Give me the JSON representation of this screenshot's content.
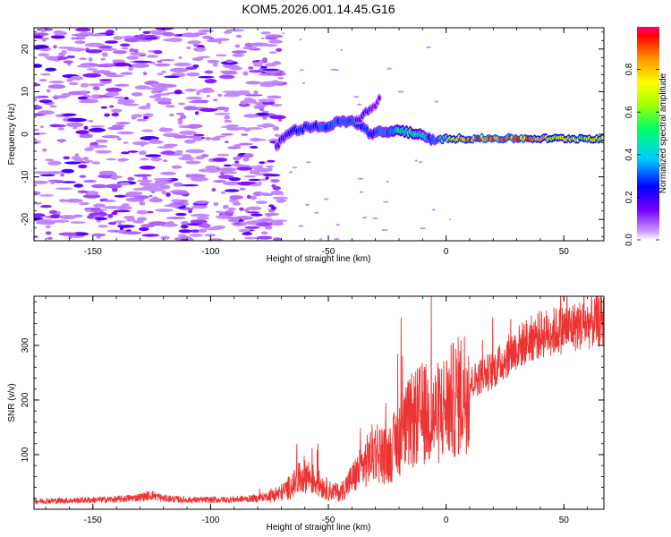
{
  "figure_title": "KOM5.2026.001.14.45.G16",
  "chart_data": [
    {
      "type": "heatmap",
      "title": "",
      "xlabel": "Height of straight line (km)",
      "ylabel": "Frequency (Hz)",
      "xlim": [
        -175,
        67
      ],
      "ylim": [
        -25,
        25
      ],
      "xticks": [
        -150,
        -100,
        -50,
        0,
        50
      ],
      "xtick_labels": [
        "-150",
        "-100",
        "-50",
        "0",
        "50"
      ],
      "yticks": [
        -20,
        -10,
        0,
        10,
        20
      ],
      "ytick_labels": [
        "-20",
        "-10",
        "0",
        "10",
        "20"
      ],
      "colorbar": {
        "label": "Normalized spectral amplitude",
        "range": [
          0,
          1
        ],
        "ticks": [
          0,
          0.2,
          0.4,
          0.6,
          0.8
        ],
        "tick_labels": [
          "0.0",
          "0.2",
          "0.4",
          "0.6",
          "0.8"
        ]
      },
      "ridge": {
        "x": [
          -72,
          -68,
          -64,
          -60,
          -56,
          -52,
          -48,
          -44,
          -40,
          -36,
          -32,
          -28,
          -24,
          -20,
          -16,
          -12,
          -8,
          -4,
          0,
          5,
          10,
          20,
          30,
          40,
          50,
          60,
          67
        ],
        "freq": [
          -3,
          0,
          1,
          1.5,
          2,
          1.5,
          2.5,
          3,
          3,
          2,
          0,
          0.5,
          0.5,
          1,
          0.5,
          0,
          -1,
          -1.5,
          -1,
          -1,
          -1,
          -1,
          -1,
          -1,
          -1,
          -1,
          -1
        ],
        "amplitude": [
          0.15,
          0.2,
          0.25,
          0.25,
          0.25,
          0.3,
          0.3,
          0.3,
          0.3,
          0.25,
          0.25,
          0.3,
          0.35,
          0.45,
          0.5,
          0.5,
          0.3,
          0.3,
          0.5,
          0.75,
          0.85,
          0.9,
          0.9,
          0.75,
          0.65,
          0.6,
          0.7
        ]
      },
      "branch": {
        "x": [
          -38,
          -34,
          -30,
          -28
        ],
        "freq": [
          3,
          5,
          7,
          8.5
        ],
        "amplitude": [
          0.2,
          0.18,
          0.15,
          0.12
        ]
      },
      "noise_region_x": [
        -175,
        -78
      ]
    },
    {
      "type": "line",
      "title": "",
      "xlabel": "Height of straight line (km)",
      "ylabel": "SNR (v/v)",
      "xlim": [
        -175,
        67
      ],
      "ylim": [
        0,
        390
      ],
      "xticks": [
        -150,
        -100,
        -50,
        0,
        50
      ],
      "xtick_labels": [
        "-150",
        "-100",
        "-50",
        "0",
        "50"
      ],
      "yticks": [
        100,
        200,
        300
      ],
      "ytick_labels": [
        "100",
        "200",
        "300"
      ],
      "series": [
        {
          "name": "SNR",
          "color": "#ee3333",
          "x": [
            -175,
            -160,
            -150,
            -140,
            -130,
            -125,
            -120,
            -110,
            -100,
            -90,
            -80,
            -75,
            -70,
            -65,
            -60,
            -55,
            -50,
            -45,
            -40,
            -35,
            -30,
            -25,
            -20,
            -15,
            -10,
            -5,
            0,
            5,
            10,
            15,
            20,
            25,
            30,
            35,
            40,
            45,
            50,
            55,
            60,
            67
          ],
          "y": [
            15,
            16,
            17,
            18,
            22,
            26,
            20,
            17,
            17,
            18,
            20,
            25,
            30,
            45,
            65,
            50,
            35,
            30,
            55,
            80,
            110,
            95,
            130,
            160,
            175,
            170,
            190,
            205,
            230,
            245,
            255,
            275,
            295,
            310,
            320,
            325,
            330,
            335,
            340,
            345
          ]
        }
      ]
    }
  ],
  "colors": {
    "series_line": "#ee3333",
    "axis": "#000000"
  }
}
